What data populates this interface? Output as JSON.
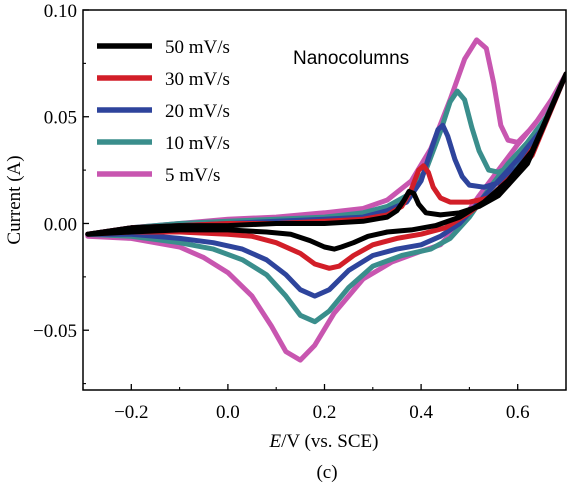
{
  "chart_data": {
    "type": "line",
    "annotation": "Nanocolumns",
    "xlabel_italic": "E",
    "xlabel_rest": "/V (vs. SCE)",
    "ylabel": "Current (A)",
    "caption": "(c)",
    "xlim": [
      -0.3,
      0.7
    ],
    "ylim": [
      -0.078,
      0.1
    ],
    "xticks": [
      -0.2,
      0.0,
      0.2,
      0.4,
      0.6
    ],
    "xtick_labels": [
      "−0.2",
      "0.0",
      "0.2",
      "0.4",
      "0.6"
    ],
    "yticks": [
      -0.05,
      0.0,
      0.05,
      0.1
    ],
    "ytick_labels": [
      "−0.05",
      "0.00",
      "0.05",
      "0.10"
    ],
    "grid": false,
    "legend_position": "top-left",
    "series": [
      {
        "name": "5 mV/s",
        "color": "#c856b0",
        "points": [
          [
            -0.29,
            -0.005
          ],
          [
            -0.2,
            -0.002
          ],
          [
            -0.1,
            0.0
          ],
          [
            0.0,
            0.002
          ],
          [
            0.1,
            0.003
          ],
          [
            0.2,
            0.005
          ],
          [
            0.28,
            0.007
          ],
          [
            0.33,
            0.011
          ],
          [
            0.38,
            0.02
          ],
          [
            0.42,
            0.035
          ],
          [
            0.46,
            0.058
          ],
          [
            0.49,
            0.077
          ],
          [
            0.515,
            0.086
          ],
          [
            0.535,
            0.082
          ],
          [
            0.55,
            0.066
          ],
          [
            0.565,
            0.046
          ],
          [
            0.58,
            0.039
          ],
          [
            0.6,
            0.038
          ],
          [
            0.63,
            0.045
          ],
          [
            0.66,
            0.054
          ],
          [
            0.7,
            0.07
          ],
          [
            0.67,
            0.058
          ],
          [
            0.64,
            0.048
          ],
          [
            0.6,
            0.037
          ],
          [
            0.56,
            0.025
          ],
          [
            0.52,
            0.013
          ],
          [
            0.48,
            0.0
          ],
          [
            0.44,
            -0.01
          ],
          [
            0.4,
            -0.013
          ],
          [
            0.34,
            -0.018
          ],
          [
            0.28,
            -0.026
          ],
          [
            0.22,
            -0.042
          ],
          [
            0.18,
            -0.057
          ],
          [
            0.15,
            -0.064
          ],
          [
            0.12,
            -0.06
          ],
          [
            0.09,
            -0.048
          ],
          [
            0.05,
            -0.034
          ],
          [
            0.0,
            -0.023
          ],
          [
            -0.05,
            -0.016
          ],
          [
            -0.1,
            -0.011
          ],
          [
            -0.2,
            -0.007
          ],
          [
            -0.29,
            -0.006
          ]
        ]
      },
      {
        "name": "10 mV/s",
        "color": "#3a8e8c",
        "points": [
          [
            -0.29,
            -0.005
          ],
          [
            -0.2,
            -0.002
          ],
          [
            -0.1,
            0.0
          ],
          [
            0.0,
            0.001
          ],
          [
            0.1,
            0.002
          ],
          [
            0.2,
            0.003
          ],
          [
            0.28,
            0.005
          ],
          [
            0.33,
            0.008
          ],
          [
            0.37,
            0.013
          ],
          [
            0.41,
            0.025
          ],
          [
            0.44,
            0.043
          ],
          [
            0.46,
            0.057
          ],
          [
            0.475,
            0.062
          ],
          [
            0.49,
            0.058
          ],
          [
            0.505,
            0.045
          ],
          [
            0.52,
            0.034
          ],
          [
            0.54,
            0.025
          ],
          [
            0.56,
            0.024
          ],
          [
            0.59,
            0.027
          ],
          [
            0.62,
            0.034
          ],
          [
            0.65,
            0.043
          ],
          [
            0.7,
            0.07
          ],
          [
            0.66,
            0.05
          ],
          [
            0.62,
            0.038
          ],
          [
            0.58,
            0.028
          ],
          [
            0.54,
            0.016
          ],
          [
            0.5,
            0.003
          ],
          [
            0.46,
            -0.007
          ],
          [
            0.42,
            -0.012
          ],
          [
            0.36,
            -0.015
          ],
          [
            0.3,
            -0.02
          ],
          [
            0.25,
            -0.03
          ],
          [
            0.21,
            -0.041
          ],
          [
            0.18,
            -0.046
          ],
          [
            0.15,
            -0.043
          ],
          [
            0.12,
            -0.034
          ],
          [
            0.08,
            -0.024
          ],
          [
            0.03,
            -0.017
          ],
          [
            -0.03,
            -0.012
          ],
          [
            -0.1,
            -0.009
          ],
          [
            -0.2,
            -0.006
          ],
          [
            -0.29,
            -0.005
          ]
        ]
      },
      {
        "name": "20 mV/s",
        "color": "#2e449c",
        "points": [
          [
            -0.29,
            -0.005
          ],
          [
            -0.2,
            -0.002
          ],
          [
            -0.1,
            -0.001
          ],
          [
            0.0,
            0.0
          ],
          [
            0.1,
            0.001
          ],
          [
            0.2,
            0.002
          ],
          [
            0.28,
            0.003
          ],
          [
            0.33,
            0.006
          ],
          [
            0.37,
            0.01
          ],
          [
            0.4,
            0.02
          ],
          [
            0.42,
            0.034
          ],
          [
            0.435,
            0.044
          ],
          [
            0.445,
            0.046
          ],
          [
            0.455,
            0.041
          ],
          [
            0.47,
            0.03
          ],
          [
            0.485,
            0.022
          ],
          [
            0.5,
            0.018
          ],
          [
            0.53,
            0.017
          ],
          [
            0.56,
            0.019
          ],
          [
            0.6,
            0.026
          ],
          [
            0.64,
            0.038
          ],
          [
            0.7,
            0.07
          ],
          [
            0.65,
            0.044
          ],
          [
            0.6,
            0.03
          ],
          [
            0.56,
            0.02
          ],
          [
            0.52,
            0.01
          ],
          [
            0.48,
            0.0
          ],
          [
            0.44,
            -0.006
          ],
          [
            0.4,
            -0.01
          ],
          [
            0.35,
            -0.012
          ],
          [
            0.3,
            -0.015
          ],
          [
            0.25,
            -0.022
          ],
          [
            0.21,
            -0.031
          ],
          [
            0.18,
            -0.034
          ],
          [
            0.15,
            -0.031
          ],
          [
            0.12,
            -0.024
          ],
          [
            0.08,
            -0.017
          ],
          [
            0.03,
            -0.012
          ],
          [
            -0.03,
            -0.009
          ],
          [
            -0.1,
            -0.007
          ],
          [
            -0.2,
            -0.005
          ],
          [
            -0.29,
            -0.005
          ]
        ]
      },
      {
        "name": "30 mV/s",
        "color": "#d21e28",
        "points": [
          [
            -0.29,
            -0.005
          ],
          [
            -0.2,
            -0.002
          ],
          [
            -0.1,
            -0.001
          ],
          [
            0.0,
            0.0
          ],
          [
            0.1,
            0.0
          ],
          [
            0.2,
            0.001
          ],
          [
            0.28,
            0.002
          ],
          [
            0.33,
            0.004
          ],
          [
            0.36,
            0.008
          ],
          [
            0.38,
            0.016
          ],
          [
            0.395,
            0.025
          ],
          [
            0.405,
            0.027
          ],
          [
            0.415,
            0.024
          ],
          [
            0.425,
            0.017
          ],
          [
            0.44,
            0.012
          ],
          [
            0.46,
            0.01
          ],
          [
            0.5,
            0.01
          ],
          [
            0.54,
            0.012
          ],
          [
            0.58,
            0.018
          ],
          [
            0.63,
            0.032
          ],
          [
            0.7,
            0.07
          ],
          [
            0.64,
            0.038
          ],
          [
            0.6,
            0.025
          ],
          [
            0.55,
            0.014
          ],
          [
            0.5,
            0.005
          ],
          [
            0.45,
            -0.002
          ],
          [
            0.4,
            -0.005
          ],
          [
            0.35,
            -0.007
          ],
          [
            0.3,
            -0.01
          ],
          [
            0.26,
            -0.015
          ],
          [
            0.23,
            -0.02
          ],
          [
            0.21,
            -0.021
          ],
          [
            0.18,
            -0.019
          ],
          [
            0.15,
            -0.014
          ],
          [
            0.1,
            -0.009
          ],
          [
            0.05,
            -0.006
          ],
          [
            0.0,
            -0.005
          ],
          [
            -0.1,
            -0.004
          ],
          [
            -0.2,
            -0.004
          ],
          [
            -0.29,
            -0.005
          ]
        ]
      },
      {
        "name": "50 mV/s",
        "color": "#000000",
        "points": [
          [
            -0.29,
            -0.005
          ],
          [
            -0.2,
            -0.002
          ],
          [
            -0.1,
            -0.001
          ],
          [
            0.0,
            -0.001
          ],
          [
            0.1,
            0.0
          ],
          [
            0.2,
            0.0
          ],
          [
            0.28,
            0.001
          ],
          [
            0.33,
            0.003
          ],
          [
            0.35,
            0.006
          ],
          [
            0.365,
            0.011
          ],
          [
            0.375,
            0.015
          ],
          [
            0.385,
            0.014
          ],
          [
            0.395,
            0.009
          ],
          [
            0.41,
            0.005
          ],
          [
            0.44,
            0.004
          ],
          [
            0.48,
            0.005
          ],
          [
            0.52,
            0.008
          ],
          [
            0.56,
            0.013
          ],
          [
            0.62,
            0.028
          ],
          [
            0.7,
            0.07
          ],
          [
            0.63,
            0.034
          ],
          [
            0.58,
            0.02
          ],
          [
            0.53,
            0.01
          ],
          [
            0.48,
            0.003
          ],
          [
            0.43,
            -0.001
          ],
          [
            0.38,
            -0.003
          ],
          [
            0.33,
            -0.004
          ],
          [
            0.29,
            -0.006
          ],
          [
            0.26,
            -0.009
          ],
          [
            0.235,
            -0.011
          ],
          [
            0.22,
            -0.012
          ],
          [
            0.2,
            -0.011
          ],
          [
            0.17,
            -0.008
          ],
          [
            0.13,
            -0.005
          ],
          [
            0.08,
            -0.004
          ],
          [
            0.0,
            -0.003
          ],
          [
            -0.1,
            -0.003
          ],
          [
            -0.2,
            -0.004
          ],
          [
            -0.29,
            -0.005
          ]
        ]
      }
    ],
    "legend_order": [
      4,
      3,
      2,
      1,
      0
    ]
  }
}
